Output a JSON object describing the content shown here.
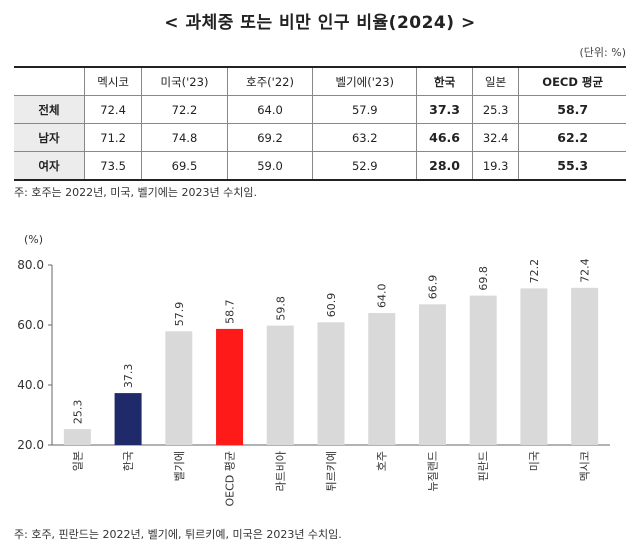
{
  "title": "< 과체중 또는 비만 인구 비율(2024) >",
  "unit": "(단위: %)",
  "table": {
    "columns": [
      "멕시코",
      "미국('23)",
      "호주('22)",
      "벨기에('23)",
      "한국",
      "일본",
      "OECD 평균"
    ],
    "bold_columns": [
      4,
      6
    ],
    "rows": [
      {
        "label": "전체",
        "values": [
          "72.4",
          "72.2",
          "64.0",
          "57.9",
          "37.3",
          "25.3",
          "58.7"
        ]
      },
      {
        "label": "남자",
        "values": [
          "71.2",
          "74.8",
          "69.2",
          "63.2",
          "46.6",
          "32.4",
          "62.2"
        ]
      },
      {
        "label": "여자",
        "values": [
          "73.5",
          "69.5",
          "59.0",
          "52.9",
          "28.0",
          "19.3",
          "55.3"
        ]
      }
    ]
  },
  "table_note": "주: 호주는 2022년, 미국, 벨기에는 2023년 수치임.",
  "chart_data": {
    "type": "bar",
    "ylabel": "(%)",
    "ylim": [
      20,
      80
    ],
    "yticks": [
      "20.0",
      "40.0",
      "60.0",
      "80.0"
    ],
    "grid": false,
    "categories": [
      "일본",
      "한국",
      "벨기에",
      "OECD 평균",
      "라트비아",
      "튀르키예",
      "호주",
      "뉴질랜드",
      "핀란드",
      "미국",
      "멕시코"
    ],
    "values": [
      25.3,
      37.3,
      57.9,
      58.7,
      59.8,
      60.9,
      64.0,
      66.9,
      69.8,
      72.2,
      72.4
    ],
    "value_labels": [
      "25.3",
      "37.3",
      "57.9",
      "58.7",
      "59.8",
      "60.9",
      "64.0",
      "66.9",
      "69.8",
      "72.2",
      "72.4"
    ],
    "colors": {
      "default": "#d9d9d9",
      "한국": "#1f2a6b",
      "OECD 평균": "#ff1a1a"
    }
  },
  "chart_note": "주: 호주, 핀란드는 2022년, 벨기에, 튀르키예, 미국은 2023년 수치임."
}
